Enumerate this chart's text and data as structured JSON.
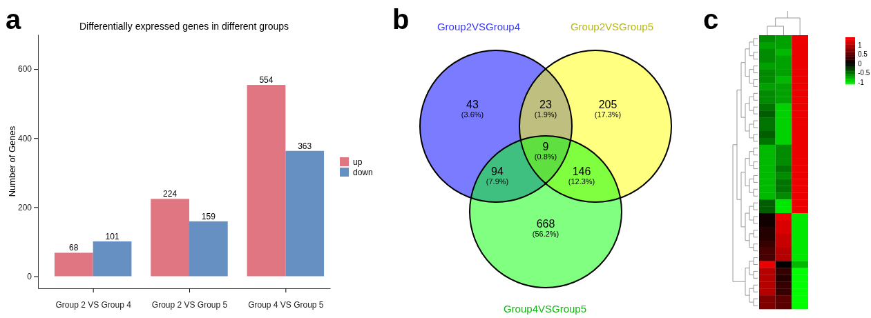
{
  "chart_data": [
    {
      "type": "bar",
      "title": "Differentially expressed genes in different groups",
      "ylabel": "Number of Genes",
      "categories": [
        "Group 2 VS Group 4",
        "Group 2 VS Group 5",
        "Group 4 VS Group 5"
      ],
      "series": [
        {
          "name": "up",
          "color": "#e07682",
          "values": [
            68,
            224,
            554
          ]
        },
        {
          "name": "down",
          "color": "#6690c2",
          "values": [
            101,
            159,
            363
          ]
        }
      ],
      "ylim": [
        -35,
        700
      ],
      "yticks": [
        0,
        200,
        400,
        600
      ],
      "data_labels": true,
      "legend": "right",
      "annotations": [
        "a"
      ]
    },
    {
      "type": "other",
      "annotations": [
        "b",
        "Group2VSGroup4",
        "Group2VSGroup5",
        "Group4VSGroup5",
        "43",
        "(3.6%)",
        "23",
        "(1.9%)",
        "205",
        "(17.3%)",
        "94",
        "(7.9%)",
        "9",
        "(0.8%)",
        "146",
        "(12.3%)",
        "668",
        "(56.2%)"
      ]
    },
    {
      "type": "heatmap",
      "categories": [
        null,
        null,
        null
      ],
      "y_categories": [
        null,
        null,
        null,
        null,
        null,
        null,
        null,
        null,
        null,
        null,
        null,
        null,
        null,
        null,
        null,
        null,
        null,
        null,
        null,
        null,
        null,
        null,
        null,
        null,
        null,
        null,
        null,
        null,
        null,
        null,
        null,
        null,
        null,
        null,
        null,
        null,
        null,
        null,
        null,
        null
      ],
      "cells": [
        [
          -0.6,
          -0.7,
          1.3
        ],
        [
          -0.7,
          -0.7,
          1.3
        ],
        [
          -0.6,
          -0.8,
          1.3
        ],
        [
          -0.6,
          -0.7,
          1.3
        ],
        [
          -0.7,
          -0.7,
          1.3
        ],
        [
          -0.6,
          -0.7,
          1.3
        ],
        [
          -0.6,
          -0.8,
          1.3
        ],
        [
          -0.7,
          -0.7,
          1.3
        ],
        [
          -0.6,
          -0.7,
          1.3
        ],
        [
          -0.6,
          -0.7,
          1.3
        ],
        [
          -0.5,
          -0.9,
          1.3
        ],
        [
          -0.4,
          -0.9,
          1.3
        ],
        [
          -0.5,
          -0.9,
          1.3
        ],
        [
          -0.5,
          -0.9,
          1.3
        ],
        [
          -0.4,
          -0.9,
          1.3
        ],
        [
          -0.5,
          -0.9,
          1.3
        ],
        [
          -0.8,
          -0.6,
          1.3
        ],
        [
          -0.8,
          -0.6,
          1.3
        ],
        [
          -0.8,
          -0.6,
          1.3
        ],
        [
          -0.8,
          -0.5,
          1.3
        ],
        [
          -0.8,
          -0.6,
          1.3
        ],
        [
          -0.8,
          -0.5,
          1.3
        ],
        [
          -0.8,
          -0.5,
          1.3
        ],
        [
          -0.8,
          -0.6,
          1.3
        ],
        [
          -0.4,
          -1.0,
          1.3
        ],
        [
          -0.4,
          -1.0,
          1.3
        ],
        [
          0.1,
          1.3,
          -1.0
        ],
        [
          0.1,
          1.2,
          -1.0
        ],
        [
          0.2,
          1.2,
          -1.0
        ],
        [
          0.2,
          1.1,
          -1.0
        ],
        [
          0.3,
          1.1,
          -1.0
        ],
        [
          0.4,
          1.0,
          -1.0
        ],
        [
          0.4,
          1.0,
          -1.0
        ],
        [
          1.3,
          0.0,
          -0.8
        ],
        [
          1.0,
          0.3,
          -1.1
        ],
        [
          1.0,
          0.2,
          -1.1
        ],
        [
          1.0,
          0.3,
          -1.1
        ],
        [
          1.0,
          0.3,
          -1.1
        ],
        [
          0.7,
          0.5,
          -1.1
        ],
        [
          0.7,
          0.5,
          -1.1
        ]
      ],
      "clim": [
        -1.1,
        1.4
      ],
      "cticks": [
        -1,
        -0.5,
        0,
        0.5,
        1
      ],
      "annotations": [
        "c"
      ]
    }
  ]
}
